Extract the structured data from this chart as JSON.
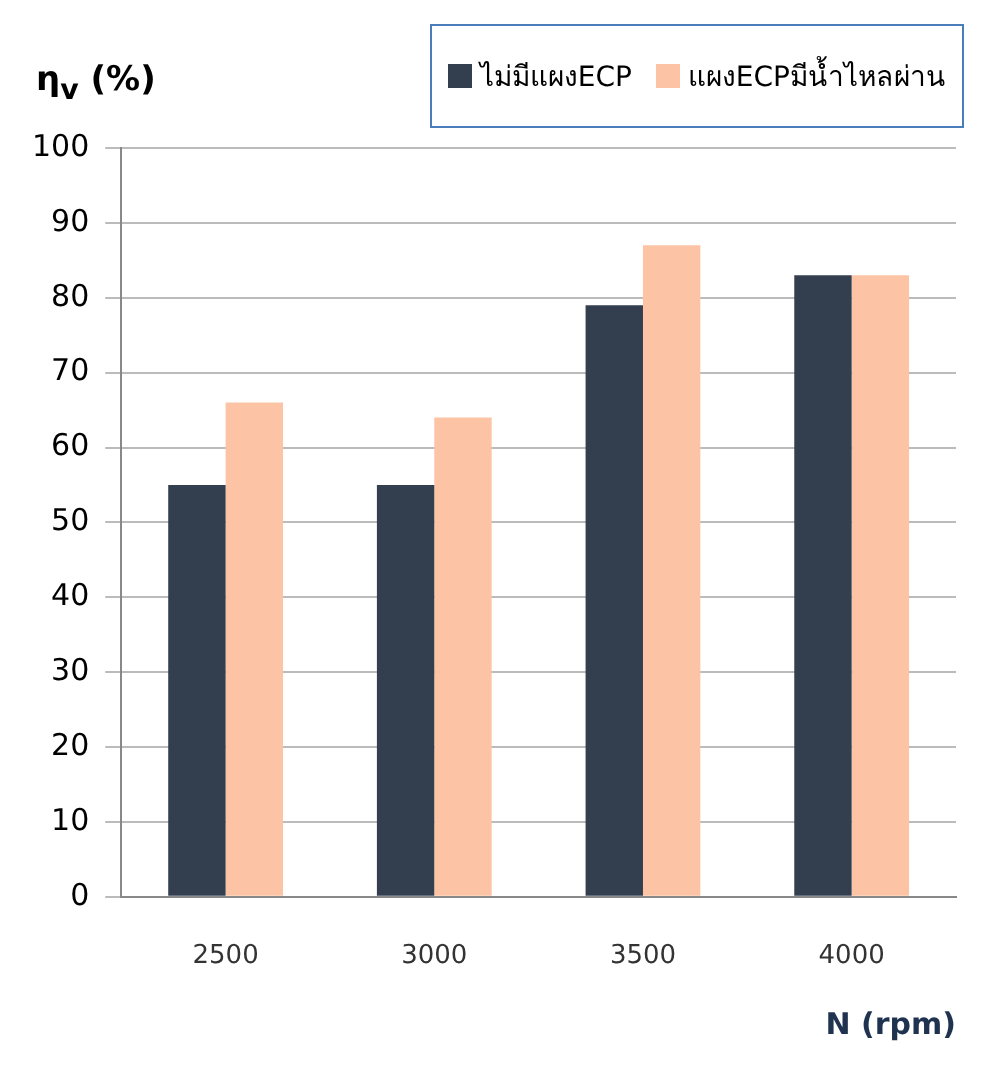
{
  "chart_data": {
    "type": "bar",
    "ylabel": "η$_{v}$ (%)",
    "xlabel": "N (rpm)",
    "categories": [
      "2500",
      "3000",
      "3500",
      "4000"
    ],
    "series": [
      {
        "name": "ไม่มีแผงECP",
        "color": "#333f4f",
        "values": [
          55,
          55,
          79,
          83
        ]
      },
      {
        "name": "แผงECPมีน้ำไหลผ่าน",
        "color": "#fcc4a4",
        "values": [
          66,
          64,
          87,
          83
        ]
      }
    ],
    "ylim": [
      0,
      100
    ],
    "yticks": [
      0,
      10,
      20,
      30,
      40,
      50,
      60,
      70,
      80,
      90,
      100
    ],
    "grid": "y",
    "legend": "top right"
  }
}
